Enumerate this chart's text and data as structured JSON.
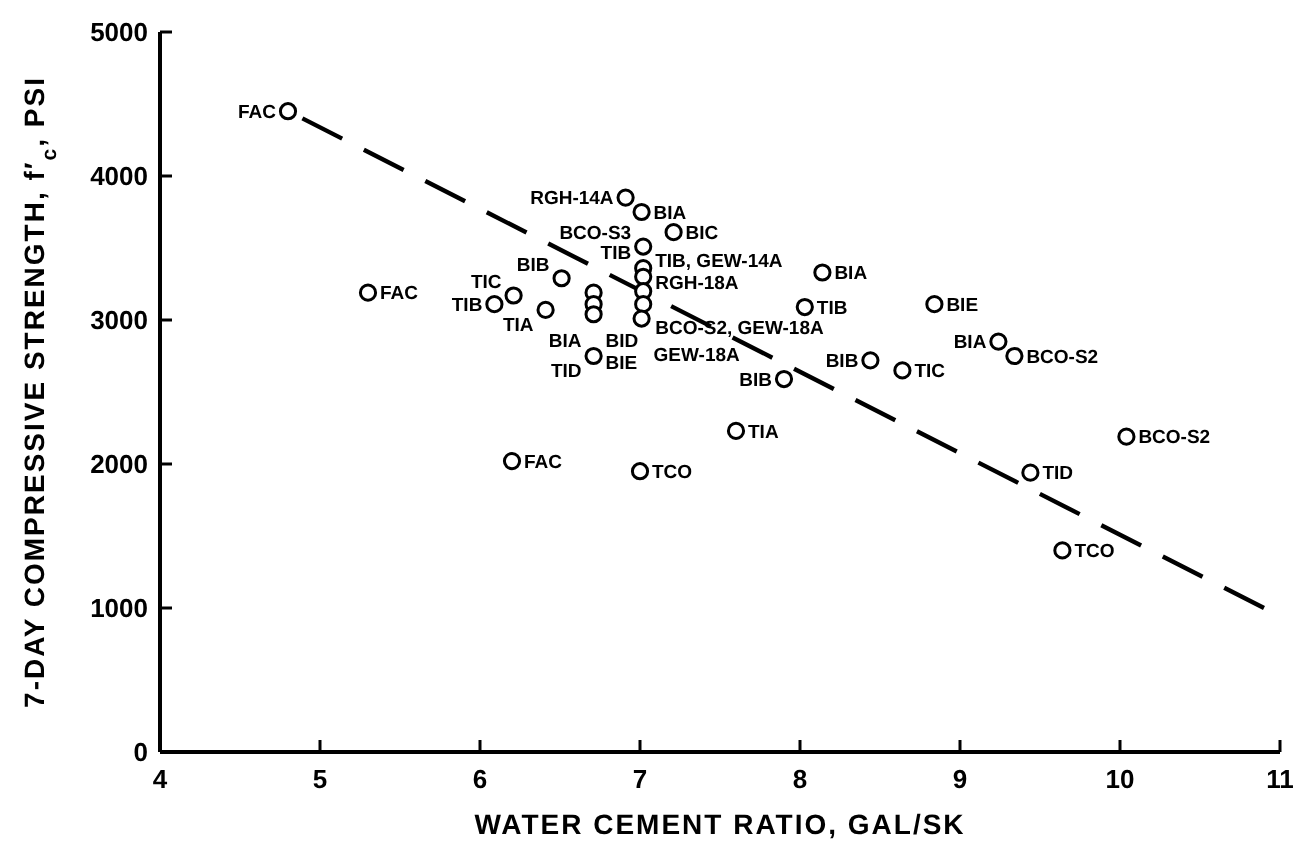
{
  "chart_data": {
    "type": "scatter",
    "xlabel": "WATER CEMENT RATIO, GAL/SK",
    "ylabel": "7-DAY COMPRESSIVE STRENGTH, f′$_{c}$, PSI",
    "xlim": [
      4,
      11
    ],
    "xticks": [
      4,
      5,
      6,
      7,
      8,
      9,
      10,
      11
    ],
    "ylim": [
      0,
      5000
    ],
    "yticks": [
      0,
      1000,
      2000,
      3000,
      4000,
      5000
    ],
    "grid": false,
    "series": [
      {
        "type": "scatter",
        "color": "#000000",
        "marker": "circle",
        "x": [
          4.8,
          5.3,
          6.2,
          7.0,
          7.6,
          6.91,
          7.01,
          7.21,
          7.02,
          7.02,
          7.02,
          7.02,
          7.02,
          7.01,
          6.51,
          6.71,
          6.71,
          6.71,
          6.21,
          6.09,
          6.41,
          6.71,
          8.03,
          8.84,
          8.44,
          8.64,
          7.9,
          9.24,
          9.34,
          10.04,
          9.44,
          9.64,
          8.14
        ],
        "values": [
          4450,
          3190,
          2020,
          1950,
          2230,
          3850,
          3750,
          3610,
          3510,
          3360,
          3300,
          3200,
          3110,
          3010,
          3290,
          3190,
          3110,
          3040,
          3170,
          3110,
          3070,
          2750,
          3090,
          3110,
          2720,
          2650,
          2590,
          2850,
          2750,
          2190,
          1940,
          1400,
          3330
        ]
      },
      {
        "type": "line",
        "color": "#000000",
        "line_style": "dashed",
        "marker": "none",
        "x": [
          4.89,
          10.9
        ],
        "values": [
          4400,
          1000
        ]
      }
    ],
    "annotations": [
      {
        "text": "FAC",
        "x": 4.8,
        "y": 4450
      },
      {
        "text": "FAC",
        "x": 5.3,
        "y": 3190
      },
      {
        "text": "FAC",
        "x": 6.2,
        "y": 2020
      },
      {
        "text": "TCO",
        "x": 7.0,
        "y": 1950
      },
      {
        "text": "TIA",
        "x": 7.6,
        "y": 2230
      },
      {
        "text": "RGH-14A",
        "x": 6.91,
        "y": 3850
      },
      {
        "text": "BIA",
        "x": 7.01,
        "y": 3750
      },
      {
        "text": "BIC",
        "x": 7.21,
        "y": 3610
      },
      {
        "text": "TIB, GEW-14A",
        "x": 7.02,
        "y": 3510
      },
      {
        "text": "RGH-18A",
        "x": 7.02,
        "y": 3360
      },
      {
        "text": "TIB",
        "x": 7.02,
        "y": 3300
      },
      {
        "text": "BCO-S2, GEW-18A",
        "x": 7.02,
        "y": 3200
      },
      {
        "text": "GEW-18A",
        "x": 7.01,
        "y": 3010
      },
      {
        "text": "BIB",
        "x": 6.51,
        "y": 3290
      },
      {
        "text": "BID",
        "x": 6.71,
        "y": 3190
      },
      {
        "text": "BIA",
        "x": 6.71,
        "y": 3110
      },
      {
        "text": "BIE",
        "x": 6.71,
        "y": 3040
      },
      {
        "text": "TIC",
        "x": 6.21,
        "y": 3170
      },
      {
        "text": "TIB",
        "x": 6.09,
        "y": 3110
      },
      {
        "text": "TIA",
        "x": 6.41,
        "y": 3070
      },
      {
        "text": "TID",
        "x": 6.71,
        "y": 2750
      },
      {
        "text": "TIB",
        "x": 8.03,
        "y": 3090
      },
      {
        "text": "BIE",
        "x": 8.84,
        "y": 3110
      },
      {
        "text": "BIB",
        "x": 8.44,
        "y": 2720
      },
      {
        "text": "TIC",
        "x": 8.64,
        "y": 2650
      },
      {
        "text": "BIB",
        "x": 7.9,
        "y": 2590
      },
      {
        "text": "BIA",
        "x": 9.24,
        "y": 2850
      },
      {
        "text": "BCO-S2",
        "x": 9.34,
        "y": 2750
      },
      {
        "text": "BCO-S2",
        "x": 10.04,
        "y": 2190
      },
      {
        "text": "TID",
        "x": 9.44,
        "y": 1940
      },
      {
        "text": "TCO",
        "x": 9.64,
        "y": 1400
      },
      {
        "text": "BIA",
        "x": 8.14,
        "y": 3330
      },
      {
        "text": "BCO-S3",
        "x": 7.02,
        "y": 3510
      }
    ]
  }
}
